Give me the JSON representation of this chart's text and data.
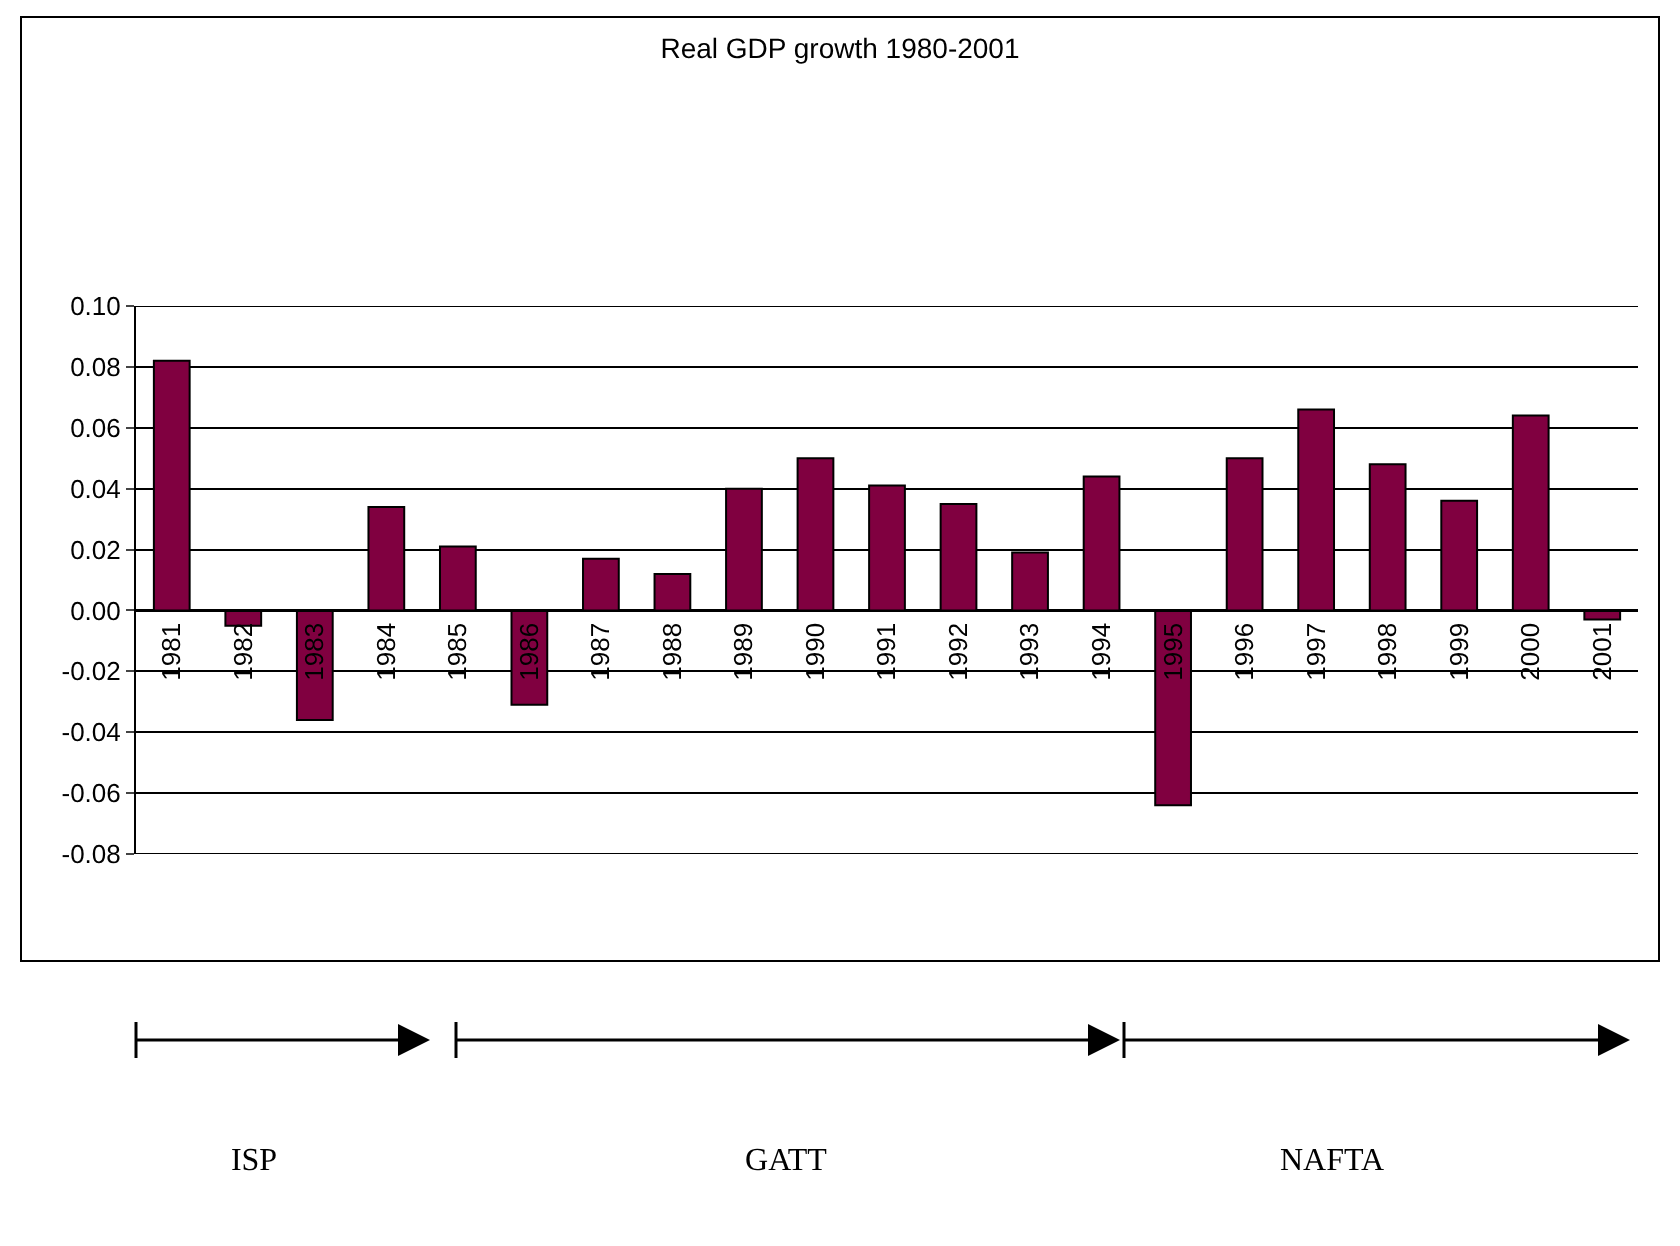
{
  "chart_data": {
    "type": "bar",
    "title": "Real GDP growth 1980-2001",
    "categories": [
      "1981",
      "1982",
      "1983",
      "1984",
      "1985",
      "1986",
      "1987",
      "1988",
      "1989",
      "1990",
      "1991",
      "1992",
      "1993",
      "1994",
      "1995",
      "1996",
      "1997",
      "1998",
      "1999",
      "2000",
      "2001"
    ],
    "values": [
      0.082,
      -0.005,
      -0.036,
      0.034,
      0.021,
      -0.031,
      0.017,
      0.012,
      0.04,
      0.05,
      0.041,
      0.035,
      0.019,
      0.044,
      -0.064,
      0.05,
      0.066,
      0.048,
      0.036,
      0.064,
      -0.003
    ],
    "color": "#800040",
    "ylim": [
      -0.08,
      0.1
    ],
    "yticks": [
      {
        "value": -0.08,
        "label": "-0.08"
      },
      {
        "value": -0.06,
        "label": "-0.06"
      },
      {
        "value": -0.04,
        "label": "-0.04"
      },
      {
        "value": -0.02,
        "label": "-0.02"
      },
      {
        "value": 0,
        "label": "0.00"
      },
      {
        "value": 0.02,
        "label": "0.02"
      },
      {
        "value": 0.04,
        "label": "0.04"
      },
      {
        "value": 0.06,
        "label": "0.06"
      },
      {
        "value": 0.08,
        "label": "0.08"
      },
      {
        "value": 0.1,
        "label": "0.10"
      }
    ],
    "grid": "y",
    "annotations": [
      "ISP",
      "GATT",
      "NAFTA"
    ]
  }
}
